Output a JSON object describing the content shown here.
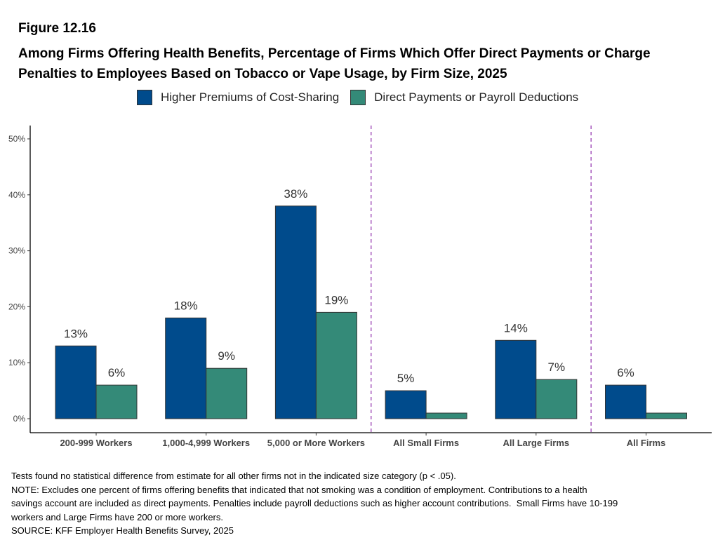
{
  "figure_label": "Figure 12.16",
  "title": "Among Firms Offering Health Benefits, Percentage of Firms Which Offer Direct Payments or Charge Penalties to Employees Based on Tobacco or Vape Usage, by Firm Size, 2025",
  "colors": {
    "series1": "#004b8c",
    "series2": "#348a78",
    "divider": "#9a3fb3",
    "axis": "#000000"
  },
  "chart_data": {
    "type": "bar",
    "categories": [
      "200-999 Workers",
      "1,000-4,999 Workers",
      "5,000 or More Workers",
      "All Small Firms",
      "All Large Firms",
      "All Firms"
    ],
    "series": [
      {
        "name": "Higher Premiums of Cost-Sharing",
        "values": [
          13,
          18,
          38,
          5,
          14,
          6
        ],
        "labels": [
          "13%",
          "18%",
          "38%",
          "5%",
          "14%",
          "6%"
        ]
      },
      {
        "name": "Direct Payments or Payroll Deductions",
        "values": [
          6,
          9,
          19,
          1,
          7,
          1
        ],
        "labels": [
          "6%",
          "9%",
          "19%",
          "",
          "7%",
          ""
        ]
      }
    ],
    "ylim": [
      0,
      50
    ],
    "yticks": [
      0,
      10,
      20,
      30,
      40,
      50
    ],
    "ytick_labels": [
      "0%",
      "10%",
      "20%",
      "30%",
      "40%",
      "50%"
    ],
    "dividers_after_categories": [
      "5,000 or More Workers",
      "All Large Firms"
    ],
    "legend_position": "top",
    "grid": false
  },
  "notes": [
    "Tests found no statistical difference from estimate for all other firms not in the indicated size category (p < .05).",
    "NOTE: Excludes one percent of firms offering benefits that indicated that not smoking was a condition of employment. Contributions to a health",
    "savings account are included as direct payments. Penalties include payroll deductions such as higher account contributions.  Small Firms have 10-199",
    "workers and Large Firms have 200 or more workers.",
    "SOURCE: KFF Employer Health Benefits Survey, 2025"
  ]
}
